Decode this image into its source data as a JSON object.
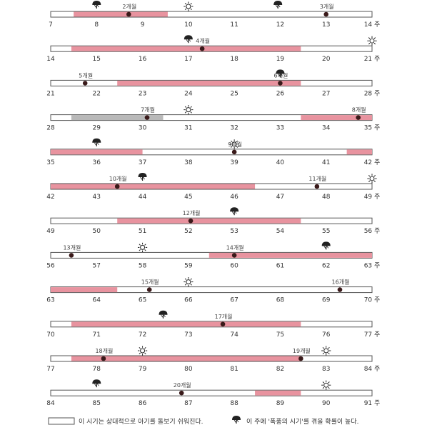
{
  "colors": {
    "fussy": "#e8939f",
    "gray": "#b9b9b9",
    "outline": "#555555",
    "dot": "#3a1a1a",
    "icon": "#222222"
  },
  "rows": [
    {
      "start": 7,
      "end": 14,
      "labels": [
        "7",
        "8",
        "9",
        "10",
        "11",
        "12",
        "13",
        "14 주"
      ],
      "fills": [
        {
          "from": 7.5,
          "to": 9.55,
          "tone": "fussy"
        }
      ],
      "months": [
        {
          "x": 8.7,
          "label": "2개월"
        },
        {
          "x": 13.0,
          "label": "3개월"
        }
      ],
      "storms": [
        8.0,
        11.95
      ],
      "suns": [
        10.0
      ]
    },
    {
      "start": 14,
      "end": 21,
      "labels": [
        "14",
        "15",
        "16",
        "17",
        "18",
        "19",
        "20",
        "21 주"
      ],
      "fills": [
        {
          "from": 14.45,
          "to": 19.45,
          "tone": "fussy"
        }
      ],
      "months": [
        {
          "x": 17.3,
          "label": "4개월"
        }
      ],
      "storms": [
        17.0
      ],
      "suns": [
        21.0
      ]
    },
    {
      "start": 21,
      "end": 28,
      "labels": [
        "21",
        "22",
        "23",
        "24",
        "25",
        "26",
        "27",
        "28 주"
      ],
      "fills": [
        {
          "from": 22.45,
          "to": 26.45,
          "tone": "fussy"
        }
      ],
      "months": [
        {
          "x": 21.75,
          "label": "5개월"
        },
        {
          "x": 26.0,
          "label": "6개월"
        }
      ],
      "storms": [
        26.0
      ],
      "suns": []
    },
    {
      "start": 28,
      "end": 35,
      "labels": [
        "28",
        "29",
        "30",
        "31",
        "32",
        "33",
        "34",
        "35 주"
      ],
      "fills": [
        {
          "from": 28.45,
          "to": 30.45,
          "tone": "gray"
        },
        {
          "from": 33.45,
          "to": 35.0,
          "tone": "fussy"
        }
      ],
      "months": [
        {
          "x": 30.1,
          "label": "7개월"
        },
        {
          "x": 34.7,
          "label": "8개월"
        }
      ],
      "storms": [],
      "suns": [
        31.0
      ]
    },
    {
      "start": 35,
      "end": 42,
      "labels": [
        "35",
        "36",
        "37",
        "38",
        "39",
        "40",
        "41",
        "42 주"
      ],
      "fills": [
        {
          "from": 35.0,
          "to": 37.0,
          "tone": "fussy"
        },
        {
          "from": 41.45,
          "to": 42.0,
          "tone": "fussy"
        }
      ],
      "months": [
        {
          "x": 39.0,
          "label": "9개월"
        }
      ],
      "storms": [
        36.0
      ],
      "suns": [
        39.0
      ]
    },
    {
      "start": 42,
      "end": 49,
      "labels": [
        "42",
        "43",
        "44",
        "45",
        "46",
        "47",
        "48",
        "49 주"
      ],
      "fills": [
        {
          "from": 42.0,
          "to": 46.45,
          "tone": "fussy"
        }
      ],
      "months": [
        {
          "x": 43.45,
          "label": "10개월"
        },
        {
          "x": 47.8,
          "label": "11개월"
        }
      ],
      "storms": [
        44.0
      ],
      "suns": [
        49.0
      ]
    },
    {
      "start": 49,
      "end": 56,
      "labels": [
        "49",
        "50",
        "51",
        "52",
        "53",
        "54",
        "55",
        "56 주"
      ],
      "fills": [
        {
          "from": 50.45,
          "to": 54.45,
          "tone": "fussy"
        }
      ],
      "months": [
        {
          "x": 52.05,
          "label": "12개월"
        }
      ],
      "storms": [
        53.0
      ],
      "suns": []
    },
    {
      "start": 56,
      "end": 63,
      "labels": [
        "56",
        "57",
        "58",
        "59",
        "60",
        "61",
        "62",
        "63 주"
      ],
      "fills": [
        {
          "from": 59.45,
          "to": 63.0,
          "tone": "fussy"
        }
      ],
      "months": [
        {
          "x": 56.45,
          "label": "13개월"
        },
        {
          "x": 60.0,
          "label": "14개월"
        }
      ],
      "storms": [
        62.0
      ],
      "suns": [
        58.0
      ]
    },
    {
      "start": 63,
      "end": 70,
      "labels": [
        "63",
        "64",
        "65",
        "66",
        "67",
        "68",
        "69",
        "70 주"
      ],
      "fills": [
        {
          "from": 63.0,
          "to": 64.45,
          "tone": "fussy"
        }
      ],
      "months": [
        {
          "x": 65.15,
          "label": "15개월"
        },
        {
          "x": 69.3,
          "label": "16개월"
        }
      ],
      "storms": [],
      "suns": [
        66.0
      ]
    },
    {
      "start": 70,
      "end": 77,
      "labels": [
        "70",
        "71",
        "72",
        "73",
        "74",
        "75",
        "76",
        "77 주"
      ],
      "fills": [
        {
          "from": 70.45,
          "to": 75.45,
          "tone": "fussy"
        }
      ],
      "months": [
        {
          "x": 73.75,
          "label": "17개월"
        }
      ],
      "storms": [
        72.45
      ],
      "suns": []
    },
    {
      "start": 77,
      "end": 84,
      "labels": [
        "77",
        "78",
        "79",
        "80",
        "81",
        "82",
        "83",
        "84 주"
      ],
      "fills": [
        {
          "from": 77.45,
          "to": 82.45,
          "tone": "fussy"
        }
      ],
      "months": [
        {
          "x": 78.15,
          "label": "18개월"
        },
        {
          "x": 82.45,
          "label": "19개월"
        }
      ],
      "storms": [],
      "suns": [
        79.0,
        83.0
      ]
    },
    {
      "start": 84,
      "end": 91,
      "labels": [
        "84",
        "85",
        "86",
        "87",
        "88",
        "89",
        "90",
        "91 주"
      ],
      "fills": [
        {
          "from": 88.45,
          "to": 89.45,
          "tone": "fussy"
        }
      ],
      "months": [
        {
          "x": 86.85,
          "label": "20개월"
        }
      ],
      "storms": [
        85.0
      ],
      "suns": [
        90.0
      ]
    }
  ],
  "legend": {
    "easy_text": "이 시기는 상대적으로 아기를 돌보기 쉬워진다.",
    "storm_text": "이 주에 '폭풍의 시기'를 겪을 확률이 높다."
  }
}
